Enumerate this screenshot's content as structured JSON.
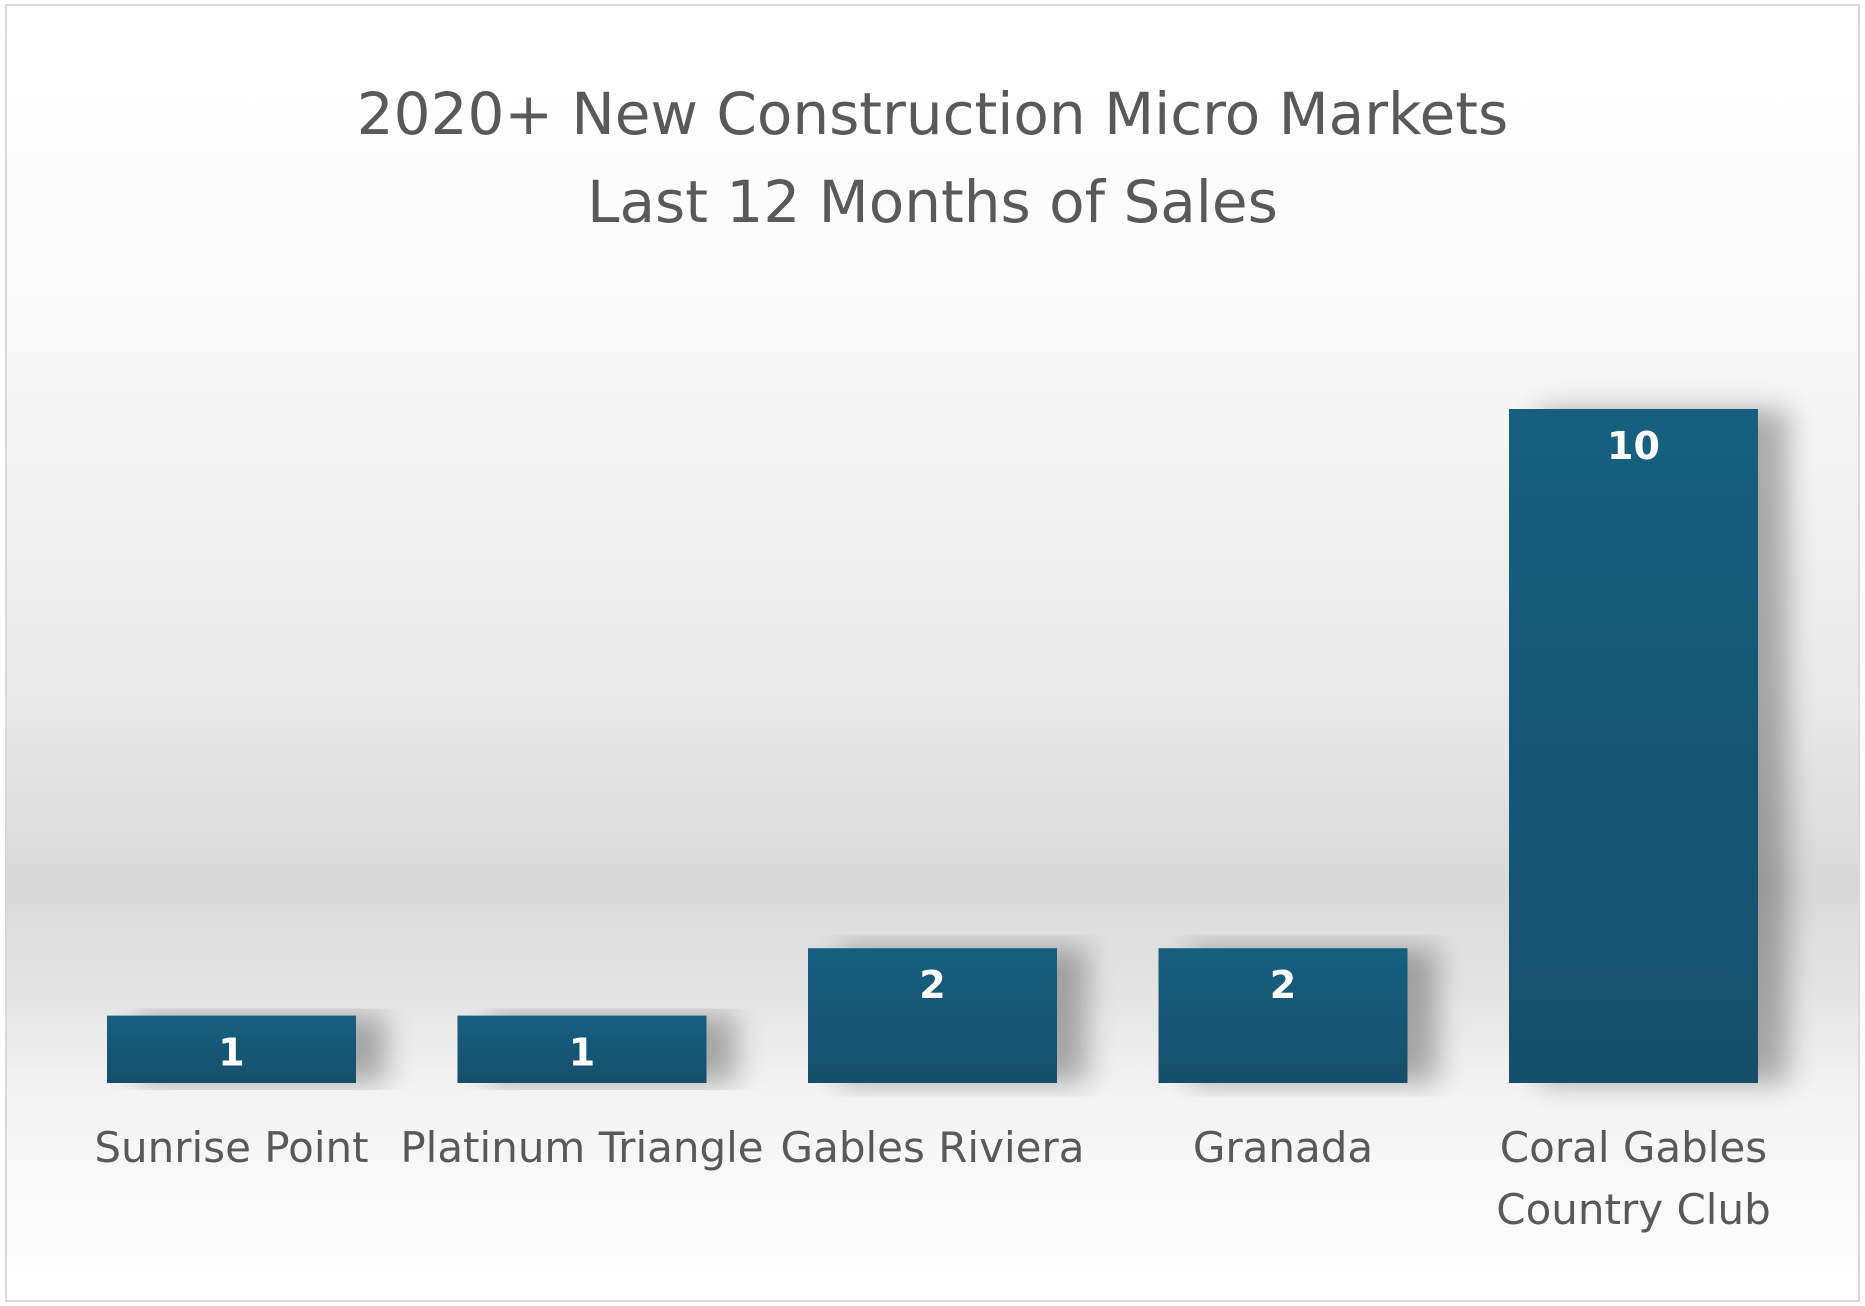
{
  "chart_data": {
    "type": "bar",
    "title": [
      "2020+ New Construction Micro Markets",
      "Last 12 Months of Sales"
    ],
    "categories": [
      "Sunrise Point",
      "Platinum Triangle",
      "Gables Riviera",
      "Granada",
      "Coral Gables Country Club"
    ],
    "category_lines": [
      [
        "Sunrise Point"
      ],
      [
        "Platinum Triangle"
      ],
      [
        "Gables Riviera"
      ],
      [
        "Granada"
      ],
      [
        "Coral Gables",
        "Country Club"
      ]
    ],
    "values": [
      1,
      1,
      2,
      2,
      10
    ],
    "data_labels": [
      "1",
      "1",
      "2",
      "2",
      "10"
    ],
    "xlabel": "",
    "ylabel": "",
    "ylim": [
      0,
      10
    ],
    "grid": false,
    "legend": "none",
    "colors": {
      "bar_top": "#175f80",
      "bar_bottom": "#134f6b",
      "label": "#595959",
      "data_label": "#ffffff"
    }
  }
}
